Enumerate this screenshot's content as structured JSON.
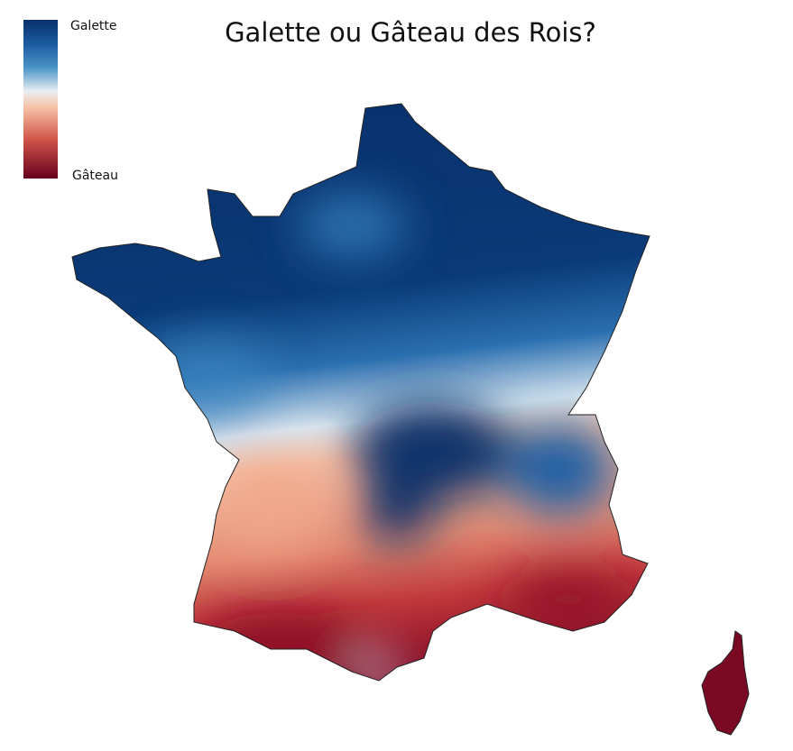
{
  "title": "Galette ou Gâteau des Rois?",
  "legend": {
    "top_label": "Galette",
    "bottom_label": "Gâteau"
  }
}
